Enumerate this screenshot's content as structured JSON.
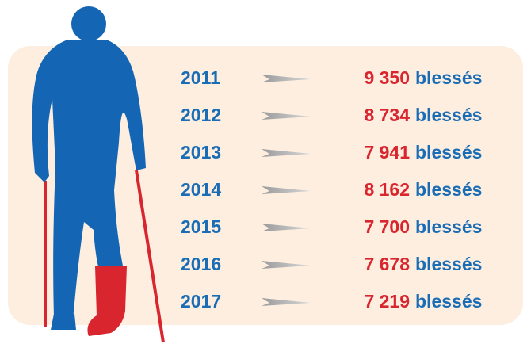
{
  "rows": [
    {
      "year": "2011",
      "count": "9 350",
      "unit": "blessés"
    },
    {
      "year": "2012",
      "count": "8 734",
      "unit": "blessés"
    },
    {
      "year": "2013",
      "count": "7 941",
      "unit": "blessés"
    },
    {
      "year": "2014",
      "count": "8 162",
      "unit": "blessés"
    },
    {
      "year": "2015",
      "count": "7 700",
      "unit": "blessés"
    },
    {
      "year": "2016",
      "count": "7 678",
      "unit": "blessés"
    },
    {
      "year": "2017",
      "count": "7 219",
      "unit": "blessés"
    }
  ]
}
